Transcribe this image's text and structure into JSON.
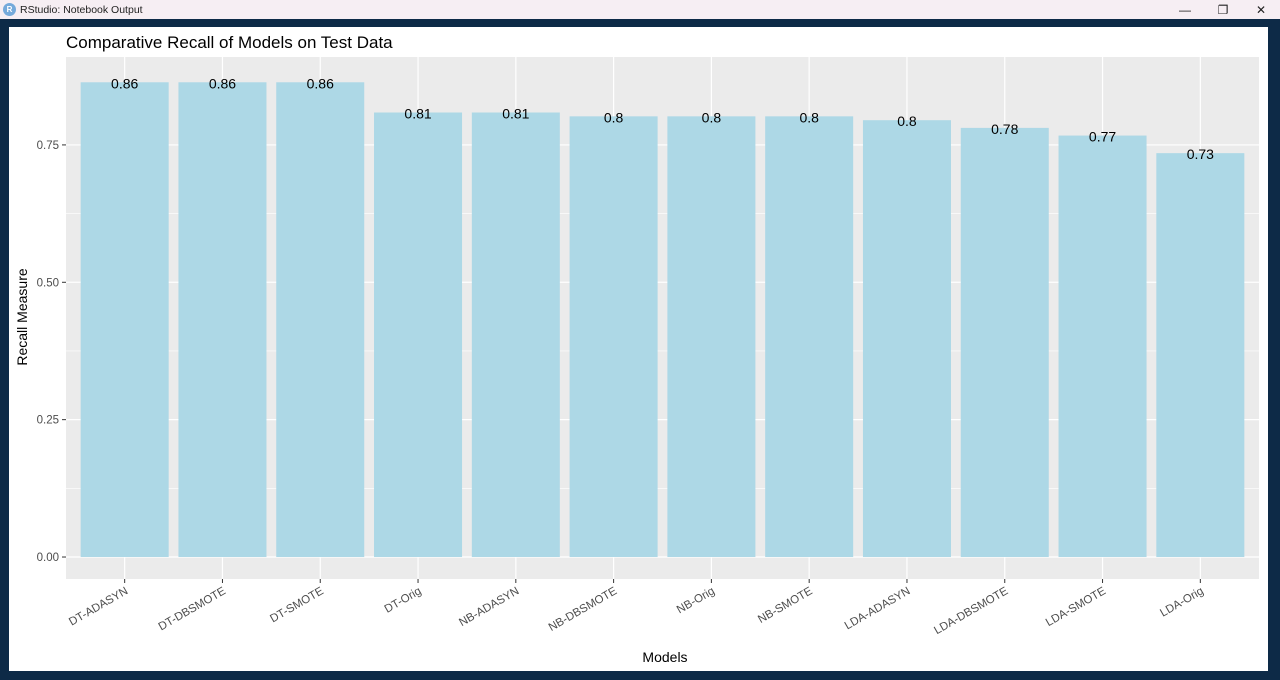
{
  "window": {
    "title": "RStudio: Notebook Output",
    "app_icon": "R",
    "controls": {
      "minimize": "—",
      "restore": "❐",
      "close": "✕"
    }
  },
  "chart_data": {
    "type": "bar",
    "title": "Comparative Recall of Models on Test Data",
    "xlabel": "Models",
    "ylabel": "Recall Measure",
    "categories": [
      "DT-ADASYN",
      "DT-DBSMOTE",
      "DT-SMOTE",
      "DT-Orig",
      "NB-ADASYN",
      "NB-DBSMOTE",
      "NB-Orig",
      "NB-SMOTE",
      "LDA-ADASYN",
      "LDA-DBSMOTE",
      "LDA-SMOTE",
      "LDA-Orig"
    ],
    "values": [
      0.864,
      0.864,
      0.864,
      0.809,
      0.809,
      0.802,
      0.802,
      0.802,
      0.795,
      0.781,
      0.767,
      0.735
    ],
    "data_labels": [
      "0.86",
      "0.86",
      "0.86",
      "0.81",
      "0.81",
      "0.8",
      "0.8",
      "0.8",
      "0.8",
      "0.78",
      "0.77",
      "0.73"
    ],
    "yticks": [
      0.0,
      0.25,
      0.5,
      0.75
    ],
    "ytick_labels": [
      "0.00",
      "0.25",
      "0.50",
      "0.75"
    ],
    "ylim": [
      -0.04,
      0.91
    ],
    "bar_color": "#add8e6",
    "panel_color": "#ebebeb",
    "grid": true
  }
}
